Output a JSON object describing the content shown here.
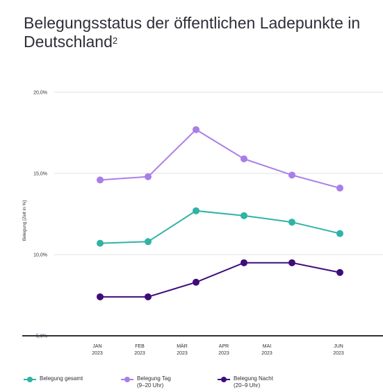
{
  "title": {
    "main": "Belegungsstatus der öffentlichen Ladepunkte in Deutschland",
    "superscript": "2"
  },
  "chart_data": {
    "type": "line",
    "ylabel": "Belegung [Zeit in %]",
    "ylim": [
      5,
      20
    ],
    "yticks": [
      {
        "value": 20,
        "label": "20,0%"
      },
      {
        "value": 15,
        "label": "15,0%"
      },
      {
        "value": 10,
        "label": "10,0%"
      },
      {
        "value": 5,
        "label": "5,0%"
      }
    ],
    "categories": [
      {
        "month": "JAN",
        "year": "2023"
      },
      {
        "month": "FEB",
        "year": "2023"
      },
      {
        "month": "MÄR",
        "year": "2023"
      },
      {
        "month": "APR",
        "year": "2023"
      },
      {
        "month": "MAI",
        "year": "2023"
      },
      {
        "month": "JUN",
        "year": "2023"
      }
    ],
    "series": [
      {
        "name": "Belegung gesamt",
        "name_line2": "",
        "color": "#2fb3a5",
        "values": [
          10.7,
          10.8,
          12.7,
          12.4,
          12.0,
          11.3
        ]
      },
      {
        "name": "Belegung Tag",
        "name_line2": "(9–20 Uhr)",
        "color": "#a97ee8",
        "values": [
          14.6,
          14.8,
          17.7,
          15.9,
          14.9,
          14.1
        ]
      },
      {
        "name": "Belegung Nacht",
        "name_line2": "(20–9 Uhr)",
        "color": "#3e0d7a",
        "values": [
          7.4,
          7.4,
          8.3,
          9.5,
          9.5,
          8.9
        ]
      }
    ],
    "grid": true,
    "legend_position": "bottom"
  }
}
